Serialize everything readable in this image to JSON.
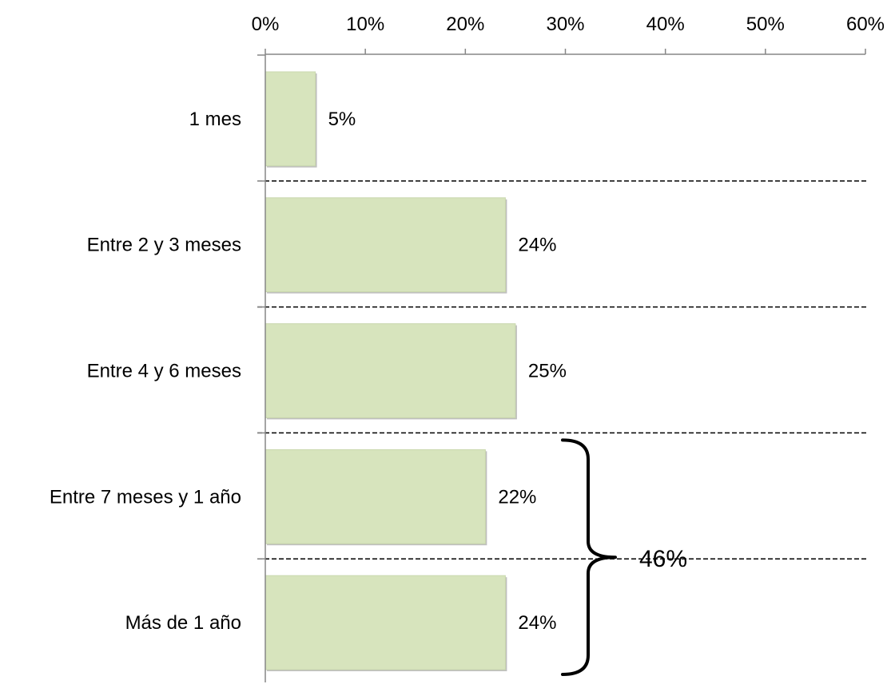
{
  "chart_data": {
    "type": "bar",
    "orientation": "horizontal",
    "categories": [
      "1 mes",
      "Entre 2 y 3 meses",
      "Entre 4 y 6 meses",
      "Entre 7 meses y 1 año",
      "Más de 1 año"
    ],
    "values": [
      5,
      24,
      25,
      22,
      24
    ],
    "value_labels": [
      "5%",
      "24%",
      "25%",
      "22%",
      "24%"
    ],
    "xlim": [
      0,
      60
    ],
    "x_ticks": [
      0,
      10,
      20,
      30,
      40,
      50,
      60
    ],
    "x_tick_labels": [
      "0%",
      "10%",
      "20%",
      "30%",
      "40%",
      "50%",
      "60%"
    ],
    "x_axis_position": "top",
    "title": "",
    "xlabel": "",
    "ylabel": "",
    "grid": false,
    "category_separators": "dashed",
    "bar_color": "#d7e4bd",
    "bar_edge_color": "#a5a5a5",
    "annotation": {
      "type": "brace",
      "spans": [
        "Entre 7 meses y 1 año",
        "Más de 1 año"
      ],
      "label": "46%"
    }
  }
}
